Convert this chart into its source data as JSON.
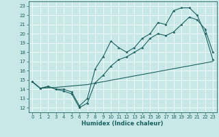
{
  "xlabel": "Humidex (Indice chaleur)",
  "bg_color": "#c8e8e8",
  "line_color": "#1a6060",
  "grid_color": "#ffffff",
  "xlim": [
    -0.5,
    23.5
  ],
  "ylim": [
    11.5,
    23.5
  ],
  "xticks": [
    0,
    1,
    2,
    3,
    4,
    5,
    6,
    7,
    8,
    9,
    10,
    11,
    12,
    13,
    14,
    15,
    16,
    17,
    18,
    19,
    20,
    21,
    22,
    23
  ],
  "yticks": [
    12,
    13,
    14,
    15,
    16,
    17,
    18,
    19,
    20,
    21,
    22,
    23
  ],
  "tick_fontsize": 5.0,
  "xlabel_fontsize": 6.0,
  "line1_x": [
    0,
    1,
    2,
    3,
    4,
    5,
    6,
    7,
    8,
    9,
    10,
    11,
    12,
    13,
    14,
    15,
    16,
    17,
    18,
    19,
    20,
    21,
    22,
    23
  ],
  "line1_y": [
    14.8,
    14.1,
    14.3,
    14.0,
    13.8,
    13.5,
    12.0,
    12.5,
    14.7,
    15.5,
    16.5,
    17.2,
    17.5,
    18.0,
    18.5,
    19.5,
    20.0,
    19.8,
    20.2,
    21.0,
    21.8,
    21.5,
    20.5,
    18.0
  ],
  "line2_x": [
    0,
    1,
    2,
    3,
    4,
    5,
    6,
    7,
    8,
    9,
    10,
    11,
    12,
    13,
    14,
    15,
    16,
    17,
    18,
    19,
    20,
    21,
    22,
    23
  ],
  "line2_y": [
    14.8,
    14.1,
    14.3,
    14.0,
    14.0,
    13.7,
    12.2,
    13.0,
    16.2,
    17.5,
    19.2,
    18.5,
    18.0,
    18.5,
    19.5,
    20.0,
    21.2,
    21.0,
    22.5,
    22.8,
    22.8,
    22.0,
    20.0,
    17.2
  ],
  "line3_x": [
    0,
    1,
    3,
    7,
    23
  ],
  "line3_y": [
    14.8,
    14.1,
    14.2,
    14.5,
    17.0
  ]
}
